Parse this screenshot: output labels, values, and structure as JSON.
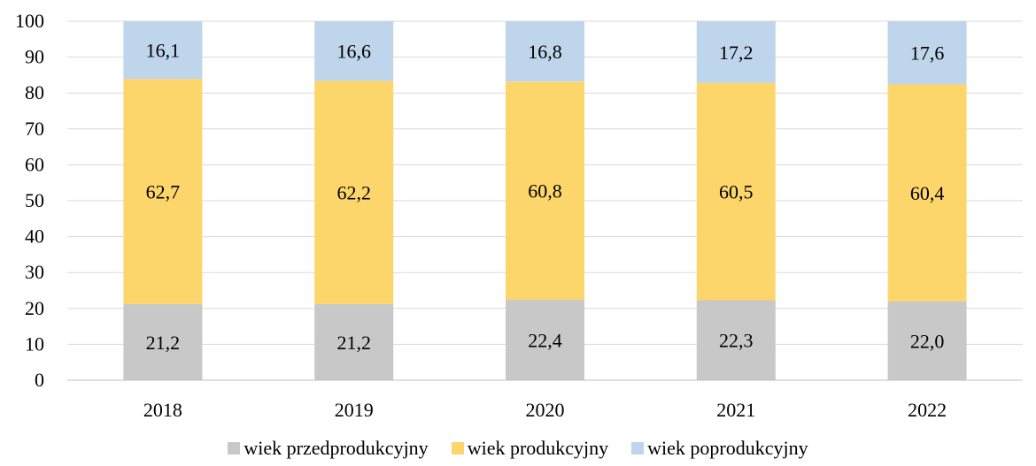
{
  "chart_data": {
    "type": "bar",
    "stacked": true,
    "categories": [
      "2018",
      "2019",
      "2020",
      "2021",
      "2022"
    ],
    "series": [
      {
        "name": "wiek przedprodukcyjny",
        "values": [
          21.2,
          21.2,
          22.4,
          22.3,
          22.0
        ],
        "labels": [
          "21,2",
          "21,2",
          "22,4",
          "22,3",
          "22,0"
        ],
        "color": "#c8c8c8"
      },
      {
        "name": "wiek produkcyjny",
        "values": [
          62.7,
          62.2,
          60.8,
          60.5,
          60.4
        ],
        "labels": [
          "62,7",
          "62,2",
          "60,8",
          "60,5",
          "60,4"
        ],
        "color": "#fdd66b"
      },
      {
        "name": "wiek poprodukcyjny",
        "values": [
          16.1,
          16.6,
          16.8,
          17.2,
          17.6
        ],
        "labels": [
          "16,1",
          "16,6",
          "16,8",
          "17,2",
          "17,6"
        ],
        "color": "#bed5eb"
      }
    ],
    "ylim": [
      0,
      100
    ],
    "yticks": [
      "0",
      "10",
      "20",
      "30",
      "40",
      "50",
      "60",
      "70",
      "80",
      "90",
      "100"
    ],
    "grid": true,
    "legend_position": "bottom",
    "title": "",
    "xlabel": "",
    "ylabel": ""
  }
}
